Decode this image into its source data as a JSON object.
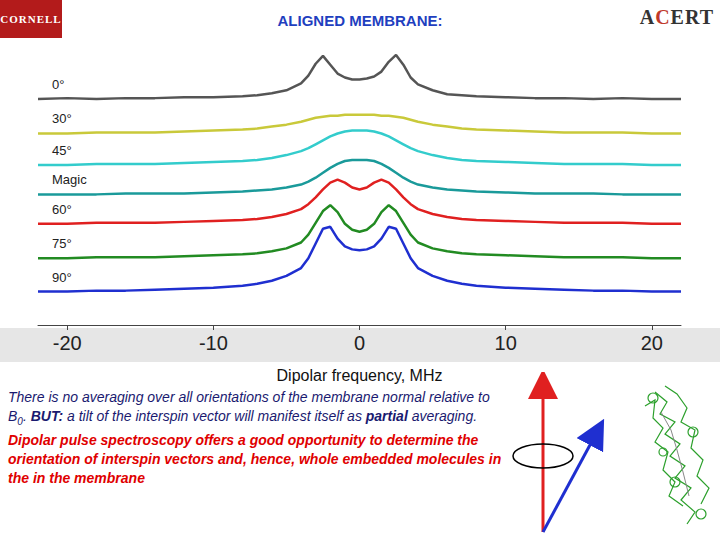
{
  "header": {
    "title": "ALIGNED MEMBRANE:",
    "logos": [
      "CORNELL",
      "ACERT"
    ]
  },
  "chart_data": {
    "type": "line",
    "x": [
      -22,
      -20,
      -18,
      -16,
      -14,
      -12,
      -10,
      -8,
      -7,
      -6,
      -5,
      -4,
      -3.5,
      -3,
      -2.5,
      -2,
      -1.5,
      -1,
      -0.5,
      0,
      0.5,
      1,
      1.5,
      2,
      2.5,
      3,
      3.5,
      4,
      5,
      6,
      7,
      8,
      10,
      12,
      14,
      16,
      18,
      20,
      22
    ],
    "series": [
      {
        "name": "0°",
        "color": "#555555",
        "values": [
          23.0,
          23.1,
          23.0,
          23.1,
          23.1,
          23.2,
          23.2,
          23.3,
          23.4,
          23.6,
          23.9,
          24.6,
          25.4,
          26.6,
          27.4,
          26.5,
          25.6,
          25.2,
          25.0,
          25.0,
          25.1,
          25.3,
          25.8,
          26.8,
          27.5,
          26.5,
          25.2,
          24.5,
          23.9,
          23.5,
          23.4,
          23.3,
          23.2,
          23.1,
          23.1,
          23.0,
          23.1,
          23.0,
          23.0
        ]
      },
      {
        "name": "30°",
        "color": "#c9c93a",
        "values": [
          19.5,
          19.5,
          19.6,
          19.6,
          19.6,
          19.7,
          19.8,
          19.9,
          20.0,
          20.2,
          20.4,
          20.7,
          20.9,
          21.1,
          21.2,
          21.3,
          21.3,
          21.4,
          21.4,
          21.4,
          21.4,
          21.4,
          21.3,
          21.3,
          21.2,
          21.1,
          20.9,
          20.7,
          20.4,
          20.2,
          20.0,
          19.9,
          19.8,
          19.7,
          19.6,
          19.6,
          19.6,
          19.5,
          19.5
        ]
      },
      {
        "name": "45°",
        "color": "#33cccc",
        "values": [
          16.3,
          16.3,
          16.4,
          16.4,
          16.4,
          16.5,
          16.6,
          16.7,
          16.8,
          17.0,
          17.3,
          17.7,
          18.0,
          18.4,
          18.8,
          19.2,
          19.5,
          19.7,
          19.8,
          19.8,
          19.8,
          19.7,
          19.5,
          19.2,
          18.8,
          18.4,
          18.0,
          17.7,
          17.3,
          17.0,
          16.8,
          16.7,
          16.6,
          16.5,
          16.4,
          16.4,
          16.4,
          16.3,
          16.3
        ]
      },
      {
        "name": "Magic",
        "color": "#1a9a9a",
        "values": [
          13.3,
          13.3,
          13.3,
          13.4,
          13.4,
          13.4,
          13.5,
          13.6,
          13.7,
          13.8,
          14.0,
          14.3,
          14.6,
          15.0,
          15.5,
          16.0,
          16.4,
          16.7,
          16.8,
          16.8,
          16.8,
          16.7,
          16.4,
          16.0,
          15.5,
          15.0,
          14.6,
          14.3,
          14.0,
          13.8,
          13.7,
          13.6,
          13.5,
          13.4,
          13.4,
          13.4,
          13.3,
          13.3,
          13.3
        ]
      },
      {
        "name": "60°",
        "color": "#e02020",
        "values": [
          10.3,
          10.3,
          10.4,
          10.4,
          10.4,
          10.5,
          10.6,
          10.7,
          10.8,
          11.0,
          11.3,
          11.8,
          12.3,
          13.0,
          13.8,
          14.5,
          14.8,
          14.5,
          14.0,
          13.8,
          14.0,
          14.5,
          14.8,
          14.5,
          13.8,
          13.0,
          12.3,
          11.8,
          11.3,
          11.0,
          10.8,
          10.7,
          10.6,
          10.5,
          10.4,
          10.4,
          10.4,
          10.3,
          10.3
        ]
      },
      {
        "name": "75°",
        "color": "#228b22",
        "values": [
          6.8,
          6.8,
          6.9,
          6.9,
          6.9,
          7.0,
          7.1,
          7.2,
          7.3,
          7.5,
          7.8,
          8.4,
          9.2,
          10.4,
          11.6,
          12.2,
          11.5,
          10.3,
          9.7,
          9.5,
          9.7,
          10.3,
          11.5,
          12.2,
          11.6,
          10.4,
          9.2,
          8.4,
          7.8,
          7.5,
          7.3,
          7.2,
          7.1,
          7.0,
          6.9,
          6.9,
          6.9,
          6.8,
          6.8
        ]
      },
      {
        "name": "90°",
        "color": "#1f2fd0",
        "values": [
          3.4,
          3.4,
          3.5,
          3.5,
          3.6,
          3.7,
          3.8,
          4.0,
          4.2,
          4.5,
          5.0,
          5.8,
          6.8,
          8.3,
          9.8,
          10.0,
          8.8,
          8.0,
          7.7,
          7.6,
          7.7,
          8.0,
          8.8,
          10.0,
          9.8,
          8.3,
          6.8,
          5.8,
          5.0,
          4.5,
          4.2,
          4.0,
          3.8,
          3.7,
          3.6,
          3.5,
          3.5,
          3.4,
          3.4
        ]
      }
    ],
    "xlim": [
      -22,
      22
    ],
    "xticks": [
      -20,
      -10,
      0,
      10,
      20
    ],
    "ylim": [
      0,
      28
    ],
    "xlabel": "Dipolar frequency, MHz",
    "tick_labels": "x",
    "grid": false
  },
  "text": {
    "paragraphs": [
      {
        "color": "#1a1a70",
        "bold": false,
        "runs": [
          {
            "text": "There is no averaging over all orientations of the membrane normal  relative to B"
          },
          {
            "text": "0",
            "sub": true
          },
          {
            "text": ". "
          },
          {
            "text": "BUT:",
            "bold": true
          },
          {
            "text": " a tilt of the interspin vector will manifest itself as "
          },
          {
            "text": "partial",
            "bold": true
          },
          {
            "text": " averaging."
          }
        ]
      },
      {
        "color": "#e00000",
        "bold": true,
        "runs": [
          {
            "text": "Dipolar pulse spectroscopy offers a good opportunity to determine the orientation of interspin vectors and, hence, whole embedded molecules in the in the membrane"
          }
        ]
      }
    ]
  }
}
